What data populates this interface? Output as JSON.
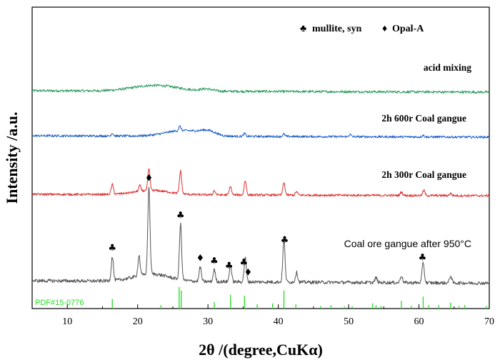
{
  "chart_data": {
    "type": "line",
    "xlabel": "2θ /(degree,CuKα)",
    "ylabel": "Intensity /a.u.",
    "xlim": [
      5,
      70
    ],
    "xticks": [
      10,
      20,
      30,
      40,
      50,
      60,
      70
    ],
    "yticks_shown": false,
    "legend": {
      "position": "top-right",
      "entries": [
        {
          "symbol": "♣",
          "label": "mullite, syn"
        },
        {
          "symbol": "♦",
          "label": "Opal-A"
        }
      ]
    },
    "reference": {
      "label": "PDF#15-0776",
      "color": "#33dd33",
      "lines": [
        {
          "x": 16.4,
          "h": 0.22
        },
        {
          "x": 23.3,
          "h": 0.08
        },
        {
          "x": 25.9,
          "h": 0.5
        },
        {
          "x": 26.2,
          "h": 0.42
        },
        {
          "x": 30.9,
          "h": 0.15
        },
        {
          "x": 33.2,
          "h": 0.32
        },
        {
          "x": 35.2,
          "h": 0.3
        },
        {
          "x": 37.0,
          "h": 0.1
        },
        {
          "x": 39.2,
          "h": 0.12
        },
        {
          "x": 40.8,
          "h": 0.42
        },
        {
          "x": 42.5,
          "h": 0.1
        },
        {
          "x": 46.0,
          "h": 0.06
        },
        {
          "x": 47.5,
          "h": 0.08
        },
        {
          "x": 49.4,
          "h": 0.05
        },
        {
          "x": 50.5,
          "h": 0.06
        },
        {
          "x": 53.4,
          "h": 0.12
        },
        {
          "x": 53.9,
          "h": 0.08
        },
        {
          "x": 54.6,
          "h": 0.06
        },
        {
          "x": 57.5,
          "h": 0.18
        },
        {
          "x": 58.9,
          "h": 0.06
        },
        {
          "x": 60.6,
          "h": 0.28
        },
        {
          "x": 61.4,
          "h": 0.08
        },
        {
          "x": 62.8,
          "h": 0.08
        },
        {
          "x": 64.5,
          "h": 0.14
        },
        {
          "x": 65.7,
          "h": 0.06
        },
        {
          "x": 66.5,
          "h": 0.08
        },
        {
          "x": 69.6,
          "h": 0.06
        }
      ]
    },
    "series": [
      {
        "name": "acid mixing",
        "color": "#2e9e5e",
        "baseline": 1.0,
        "noise": 0.045,
        "slope": -0.05,
        "humps": [
          {
            "center": 22.5,
            "width": 4.5,
            "height": 0.2
          },
          {
            "center": 29.8,
            "width": 1.2,
            "height": 0.07
          }
        ],
        "peaks": []
      },
      {
        "name": "2h 600r Coal gangue",
        "color": "#1e5fcc",
        "baseline": 1.0,
        "noise": 0.04,
        "slope": -0.05,
        "humps": [
          {
            "center": 26.5,
            "width": 3.5,
            "height": 0.2
          },
          {
            "center": 30.0,
            "width": 1.5,
            "height": 0.14
          }
        ],
        "peaks": [
          {
            "x": 16.4,
            "h": 0.1
          },
          {
            "x": 26.0,
            "h": 0.15
          },
          {
            "x": 35.2,
            "h": 0.1
          },
          {
            "x": 40.8,
            "h": 0.08
          },
          {
            "x": 50.2,
            "h": 0.08
          },
          {
            "x": 60.6,
            "h": 0.06
          }
        ]
      },
      {
        "name": "2h 300r Coal gangue",
        "color": "#dd3333",
        "baseline": 1.0,
        "noise": 0.04,
        "slope": -0.05,
        "humps": [
          {
            "center": 22.0,
            "width": 3.5,
            "height": 0.15
          }
        ],
        "peaks": [
          {
            "x": 16.4,
            "h": 0.35
          },
          {
            "x": 20.3,
            "h": 0.2
          },
          {
            "x": 21.6,
            "h": 0.75
          },
          {
            "x": 26.1,
            "h": 0.8
          },
          {
            "x": 30.9,
            "h": 0.15
          },
          {
            "x": 33.2,
            "h": 0.3
          },
          {
            "x": 35.3,
            "h": 0.5
          },
          {
            "x": 40.8,
            "h": 0.42
          },
          {
            "x": 42.6,
            "h": 0.12
          },
          {
            "x": 57.5,
            "h": 0.12
          },
          {
            "x": 60.7,
            "h": 0.18
          },
          {
            "x": 64.5,
            "h": 0.08
          }
        ]
      },
      {
        "name": "Coal ore gangue after 950°C",
        "color": "#555555",
        "baseline": 1.0,
        "noise": 0.035,
        "slope": -0.05,
        "humps": [
          {
            "center": 22.0,
            "width": 3.5,
            "height": 0.15
          }
        ],
        "peaks": [
          {
            "x": 16.4,
            "h": 0.5
          },
          {
            "x": 20.2,
            "h": 0.42
          },
          {
            "x": 21.6,
            "h": 1.8
          },
          {
            "x": 26.1,
            "h": 1.15
          },
          {
            "x": 28.9,
            "h": 0.3
          },
          {
            "x": 30.9,
            "h": 0.25
          },
          {
            "x": 33.2,
            "h": 0.35
          },
          {
            "x": 35.3,
            "h": 0.5
          },
          {
            "x": 40.8,
            "h": 0.85
          },
          {
            "x": 42.6,
            "h": 0.2
          },
          {
            "x": 53.9,
            "h": 0.1
          },
          {
            "x": 57.5,
            "h": 0.15
          },
          {
            "x": 60.6,
            "h": 0.42
          },
          {
            "x": 64.5,
            "h": 0.15
          }
        ]
      }
    ],
    "annotations": [
      {
        "symbol": "♣",
        "x": 16.4,
        "series": "Coal ore gangue after 950°C"
      },
      {
        "symbol": "♦",
        "x": 21.6,
        "series": "Coal ore gangue after 950°C"
      },
      {
        "symbol": "♣",
        "x": 26.1,
        "series": "Coal ore gangue after 950°C"
      },
      {
        "symbol": "♦",
        "x": 28.9,
        "series": "Coal ore gangue after 950°C"
      },
      {
        "symbol": "♣",
        "x": 30.9,
        "series": "Coal ore gangue after 950°C"
      },
      {
        "symbol": "♣",
        "x": 33.0,
        "series": "Coal ore gangue after 950°C"
      },
      {
        "symbol": "♣",
        "x": 35.1,
        "series": "Coal ore gangue after 950°C"
      },
      {
        "symbol": "♦",
        "x": 35.7,
        "series": "Coal ore gangue after 950°C"
      },
      {
        "symbol": "♣",
        "x": 40.9,
        "series": "Coal ore gangue after 950°C"
      },
      {
        "symbol": "♣",
        "x": 60.5,
        "series": "Coal ore gangue after 950°C"
      }
    ]
  }
}
